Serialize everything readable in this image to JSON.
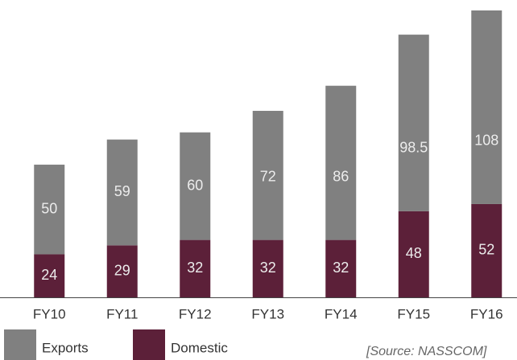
{
  "chart_data": {
    "type": "stacked_bar",
    "categories": [
      "FY10",
      "FY11",
      "FY12",
      "FY13",
      "FY14",
      "FY15",
      "FY16"
    ],
    "series": [
      {
        "name": "Exports",
        "color": "#808080",
        "values": [
          50,
          59,
          60,
          72,
          86,
          98.5,
          108
        ]
      },
      {
        "name": "Domestic",
        "color": "#5c2039",
        "values": [
          24,
          29,
          32,
          32,
          32,
          48,
          52
        ]
      }
    ],
    "annotation": "[Source: NASSCOM]"
  }
}
